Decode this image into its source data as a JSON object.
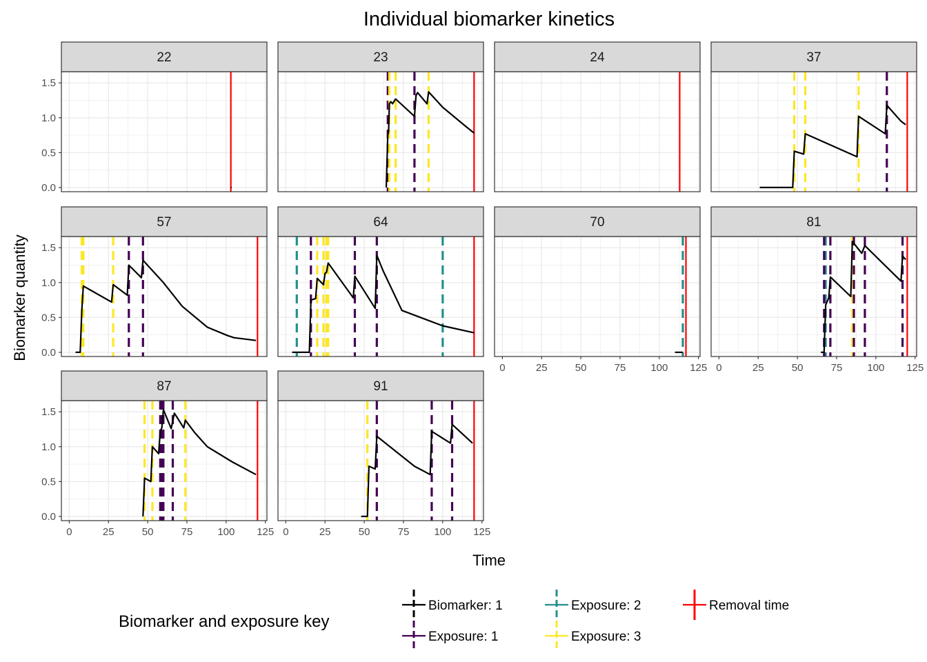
{
  "chart_data": {
    "type": "line",
    "title": "Individual biomarker kinetics",
    "xlabel": "Time",
    "ylabel": "Biomarker quantity",
    "xlim": [
      -5,
      126
    ],
    "ylim": [
      -0.06,
      1.66
    ],
    "x_ticks": [
      0,
      25,
      50,
      75,
      100,
      125
    ],
    "y_ticks": [
      0.0,
      0.5,
      1.0,
      1.5
    ],
    "y_tick_labels": [
      "0.0",
      "0.5",
      "1.0",
      "1.5"
    ],
    "grid": true,
    "layout": "facet_wrap 4 columns",
    "colors": {
      "biomarker": "#000000",
      "exposure_1": "#440154",
      "exposure_2": "#21908C",
      "exposure_3": "#FDE725",
      "removal": "#FF0000",
      "strip_bg": "#D9D9D9"
    },
    "legend": {
      "title": "Biomarker and exposure key",
      "position": "bottom",
      "entries": [
        {
          "label": "Biomarker: 1",
          "key": "biomarker"
        },
        {
          "label": "Exposure: 1",
          "key": "exposure_1"
        },
        {
          "label": "Exposure: 2",
          "key": "exposure_2"
        },
        {
          "label": "Exposure: 3",
          "key": "exposure_3"
        },
        {
          "label": "Removal time",
          "key": "removal"
        }
      ]
    },
    "panels": [
      {
        "id": "22",
        "biomarker": [
          [
            103,
            0.0
          ],
          [
            103.5,
            0.0
          ]
        ],
        "exposures": [],
        "removal": 103
      },
      {
        "id": "23",
        "biomarker": [
          [
            64,
            0.0
          ],
          [
            65,
            0.75
          ],
          [
            65.5,
            0.8
          ],
          [
            66,
            1.2
          ],
          [
            67,
            1.23
          ],
          [
            68,
            1.2
          ],
          [
            70,
            1.27
          ],
          [
            82,
            1.02
          ],
          [
            83,
            1.32
          ],
          [
            84,
            1.36
          ],
          [
            90,
            1.2
          ],
          [
            91,
            1.37
          ],
          [
            100,
            1.15
          ],
          [
            115,
            0.87
          ],
          [
            120,
            0.78
          ]
        ],
        "exposures": [
          {
            "time": 65,
            "type": 1
          },
          {
            "time": 66,
            "type": 3
          },
          {
            "time": 70,
            "type": 3
          },
          {
            "time": 82,
            "type": 1
          },
          {
            "time": 91,
            "type": 3
          }
        ],
        "removal": 120
      },
      {
        "id": "24",
        "biomarker": [],
        "exposures": [],
        "removal": 113
      },
      {
        "id": "37",
        "biomarker": [
          [
            26,
            0.0
          ],
          [
            47,
            0.0
          ],
          [
            48,
            0.52
          ],
          [
            54,
            0.48
          ],
          [
            55,
            0.77
          ],
          [
            88,
            0.44
          ],
          [
            89,
            1.02
          ],
          [
            106,
            0.77
          ],
          [
            107,
            1.18
          ],
          [
            116,
            0.95
          ],
          [
            119,
            0.9
          ]
        ],
        "exposures": [
          {
            "time": 48,
            "type": 3
          },
          {
            "time": 55,
            "type": 3
          },
          {
            "time": 89,
            "type": 3
          },
          {
            "time": 107,
            "type": 1
          }
        ],
        "removal": 120
      },
      {
        "id": "57",
        "biomarker": [
          [
            4,
            0.0
          ],
          [
            7,
            0.0
          ],
          [
            8,
            0.6
          ],
          [
            9,
            0.95
          ],
          [
            27,
            0.72
          ],
          [
            28,
            0.97
          ],
          [
            37,
            0.82
          ],
          [
            38,
            1.25
          ],
          [
            46,
            1.07
          ],
          [
            47,
            1.32
          ],
          [
            60,
            1.0
          ],
          [
            72,
            0.66
          ],
          [
            88,
            0.36
          ],
          [
            101,
            0.24
          ],
          [
            105,
            0.21
          ],
          [
            119,
            0.17
          ]
        ],
        "exposures": [
          {
            "time": 8,
            "type": 3
          },
          {
            "time": 9,
            "type": 3
          },
          {
            "time": 28,
            "type": 3
          },
          {
            "time": 38,
            "type": 1
          },
          {
            "time": 47,
            "type": 1
          }
        ],
        "removal": 120
      },
      {
        "id": "64",
        "biomarker": [
          [
            4,
            0.0
          ],
          [
            15,
            0.0
          ],
          [
            16,
            0.75
          ],
          [
            19,
            0.77
          ],
          [
            20,
            1.06
          ],
          [
            24,
            0.97
          ],
          [
            25,
            1.13
          ],
          [
            26,
            1.15
          ],
          [
            27,
            1.28
          ],
          [
            43,
            0.78
          ],
          [
            44,
            1.09
          ],
          [
            57,
            0.63
          ],
          [
            58,
            1.39
          ],
          [
            62,
            1.17
          ],
          [
            74,
            0.6
          ],
          [
            100,
            0.38
          ],
          [
            120,
            0.28
          ]
        ],
        "exposures": [
          {
            "time": 7,
            "type": 2
          },
          {
            "time": 16,
            "type": 1
          },
          {
            "time": 20,
            "type": 3
          },
          {
            "time": 24,
            "type": 3
          },
          {
            "time": 26,
            "type": 3
          },
          {
            "time": 27,
            "type": 3
          },
          {
            "time": 44,
            "type": 1
          },
          {
            "time": 58,
            "type": 1
          },
          {
            "time": 100,
            "type": 2
          }
        ],
        "removal": 120
      },
      {
        "id": "70",
        "biomarker": [
          [
            110,
            0.0
          ],
          [
            115,
            0.0
          ]
        ],
        "exposures": [
          {
            "time": 115,
            "type": 2
          }
        ],
        "removal": 117
      },
      {
        "id": "81",
        "biomarker": [
          [
            65,
            0.0
          ],
          [
            67,
            0.0
          ],
          [
            68,
            0.68
          ],
          [
            70,
            0.78
          ],
          [
            71,
            1.08
          ],
          [
            84,
            0.8
          ],
          [
            85,
            1.59
          ],
          [
            91,
            1.42
          ],
          [
            93,
            1.53
          ],
          [
            116,
            1.02
          ],
          [
            117,
            1.38
          ],
          [
            119,
            1.33
          ]
        ],
        "exposures": [
          {
            "time": 68,
            "type": 2
          },
          {
            "time": 67,
            "type": 1
          },
          {
            "time": 71,
            "type": 1
          },
          {
            "time": 85,
            "type": 3
          },
          {
            "time": 86,
            "type": 1
          },
          {
            "time": 93,
            "type": 1
          },
          {
            "time": 117,
            "type": 1
          }
        ],
        "removal": 120
      },
      {
        "id": "87",
        "biomarker": [
          [
            47,
            0.0
          ],
          [
            48,
            0.55
          ],
          [
            52,
            0.5
          ],
          [
            53,
            1.0
          ],
          [
            57,
            0.9
          ],
          [
            58,
            1.22
          ],
          [
            59,
            1.27
          ],
          [
            60,
            1.53
          ],
          [
            65,
            1.26
          ],
          [
            67,
            1.48
          ],
          [
            73,
            1.27
          ],
          [
            74,
            1.38
          ],
          [
            80,
            1.2
          ],
          [
            88,
            1.0
          ],
          [
            104,
            0.78
          ],
          [
            119,
            0.6
          ]
        ],
        "exposures": [
          {
            "time": 48,
            "type": 3
          },
          {
            "time": 53,
            "type": 3
          },
          {
            "time": 58,
            "type": 1
          },
          {
            "time": 59,
            "type": 1
          },
          {
            "time": 60,
            "type": 1
          },
          {
            "time": 66,
            "type": 1
          },
          {
            "time": 74,
            "type": 3
          }
        ],
        "removal": 120
      },
      {
        "id": "91",
        "biomarker": [
          [
            48,
            0.0
          ],
          [
            52,
            0.0
          ],
          [
            53,
            0.72
          ],
          [
            57,
            0.68
          ],
          [
            58,
            1.15
          ],
          [
            82,
            0.72
          ],
          [
            92,
            0.6
          ],
          [
            93,
            1.22
          ],
          [
            105,
            1.05
          ],
          [
            106,
            1.32
          ],
          [
            119,
            1.05
          ]
        ],
        "exposures": [
          {
            "time": 52,
            "type": 3
          },
          {
            "time": 58,
            "type": 1
          },
          {
            "time": 93,
            "type": 1
          },
          {
            "time": 106,
            "type": 1
          }
        ],
        "removal": 120
      }
    ]
  }
}
